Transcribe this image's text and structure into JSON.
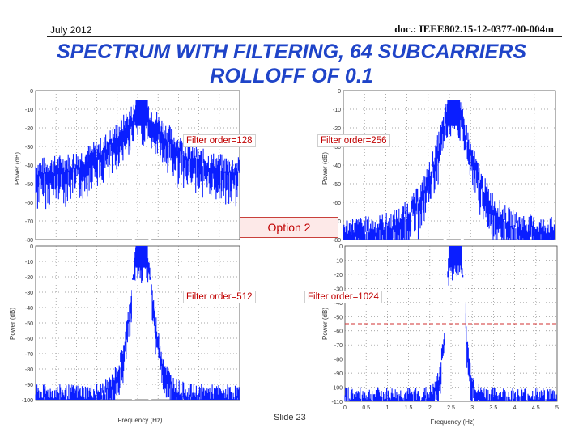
{
  "header": {
    "date": "July 2012",
    "doc": "doc.: IEEE802.15-12-0377-00-004m"
  },
  "title": {
    "line1": "SPECTRUM WITH FILTERING, 64 SUBCARRIERS",
    "line2": "ROLLOFF OF 0.1"
  },
  "option_label": "Option 2",
  "footer": {
    "slide": "Slide 23"
  },
  "colors": {
    "spectrum": "#0a1eff",
    "threshold": "#d03030",
    "title": "#1f44c8"
  },
  "chart_data": [
    {
      "type": "line",
      "annotation": "Filter order=128",
      "ylabel": "Power (dB)",
      "xlabel": "",
      "ytick_labels": [
        "0",
        "-10",
        "-20",
        "-30",
        "-40",
        "-50",
        "-60",
        "-70",
        "-80"
      ],
      "ylim": [
        -80,
        0
      ],
      "threshold_db": -55,
      "floor_db": -45,
      "peak_db": -5,
      "skirt": "wide",
      "grid": true
    },
    {
      "type": "line",
      "annotation": "Filter order=256",
      "ylabel": "Power (dB)",
      "xlabel": "",
      "ytick_labels": [
        "0",
        "-10",
        "-20",
        "-30",
        "-40",
        "-50",
        "-60",
        "-70",
        "-80"
      ],
      "ylim": [
        -80,
        0
      ],
      "floor_db": -76,
      "peak_db": -5,
      "skirt": "medium",
      "grid": true
    },
    {
      "type": "line",
      "annotation": "Filter order=512",
      "ylabel": "Power (dB)",
      "xlabel": "Frequency (Hz)",
      "ytick_labels": [
        "0",
        "-10",
        "-20",
        "-30",
        "-40",
        "-50",
        "-60",
        "-70",
        "-80",
        "-90",
        "-100"
      ],
      "ylim": [
        -100,
        0
      ],
      "floor_db": -98,
      "peak_db": 0,
      "skirt": "narrow",
      "grid": true
    },
    {
      "type": "line",
      "annotation": "Filter order=1024",
      "ylabel": "Power (dB)",
      "xlabel": "Frequency (Hz)",
      "xtick_labels": [
        "0",
        "0.5",
        "1",
        "1.5",
        "2",
        "2.5",
        "3",
        "3.5",
        "4",
        "4.5",
        "5"
      ],
      "xlim": [
        0,
        5
      ],
      "ytick_labels": [
        "0",
        "-10",
        "-20",
        "-30",
        "-40",
        "-50",
        "-60",
        "-70",
        "-80",
        "-90",
        "-100",
        "-110"
      ],
      "ylim": [
        -110,
        0
      ],
      "threshold_db": -55,
      "floor_db": -108,
      "peak_db": 0,
      "skirt": "very-narrow",
      "grid": true
    }
  ]
}
